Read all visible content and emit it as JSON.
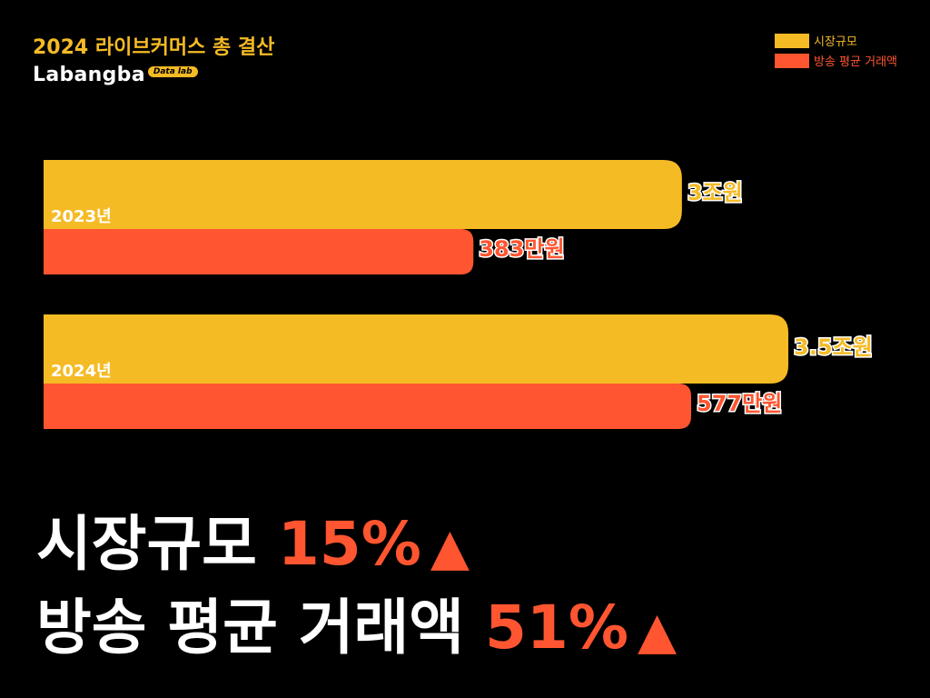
{
  "header": {
    "title": "2024 라이브커머스 총 결산",
    "logo_text": "Labangba",
    "logo_badge": "Data lab"
  },
  "colors": {
    "market_size": "#f5bb25",
    "avg_transaction": "#ff5530",
    "background": "#000000"
  },
  "chart_data": {
    "type": "bar",
    "orientation": "horizontal",
    "categories": [
      "2023년",
      "2024년"
    ],
    "legend_position": "top-right",
    "grid": false,
    "series": [
      {
        "name": "시장규모",
        "values": [
          3,
          3.5
        ],
        "value_labels": [
          "3조원",
          "3.5조원"
        ],
        "unit": "조원"
      },
      {
        "name": "방송 평균 거래액",
        "values": [
          383,
          577
        ],
        "value_labels": [
          "383만원",
          "577만원"
        ],
        "unit": "만원"
      }
    ]
  },
  "summary": {
    "line1_label": "시장규모",
    "line1_pct": "15%",
    "line2_label": "방송 평균 거래액",
    "line2_pct": "51%",
    "arrow": "▲"
  }
}
